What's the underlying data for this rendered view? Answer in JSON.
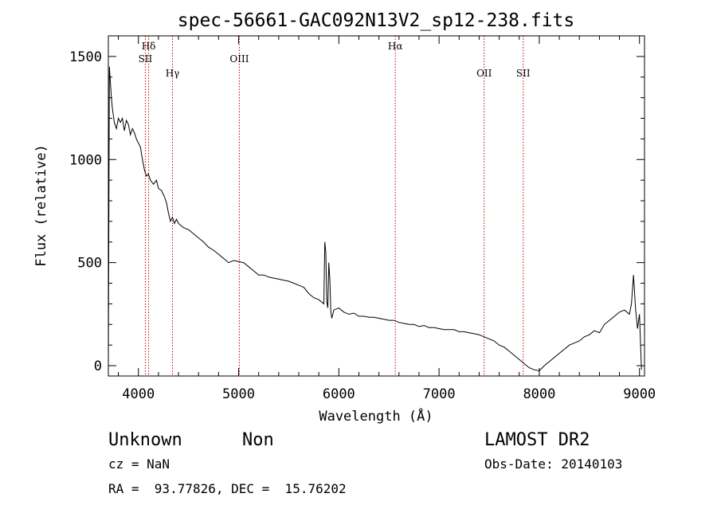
{
  "chart_data": {
    "type": "line",
    "title": "spec-56661-GAC092N13V2_sp12-238.fits",
    "xlabel": "Wavelength (Å)",
    "ylabel": "Flux (relative)",
    "xlim": [
      3700,
      9050
    ],
    "ylim": [
      -50,
      1600
    ],
    "xticks": [
      4000,
      5000,
      6000,
      7000,
      8000,
      9000
    ],
    "yticks": [
      0,
      500,
      1000,
      1500
    ],
    "line_color": "#000000",
    "marker_color": "#cc0000",
    "series": [
      {
        "x": [
          3700,
          3710,
          3720,
          3730,
          3740,
          3760,
          3780,
          3800,
          3820,
          3840,
          3860,
          3880,
          3900,
          3920,
          3940,
          3960,
          3980,
          4000,
          4020,
          4040,
          4060,
          4080,
          4100,
          4120,
          4150,
          4180,
          4200,
          4230,
          4260,
          4280,
          4300,
          4320,
          4340,
          4360,
          4380,
          4400,
          4450,
          4500,
          4550,
          4600,
          4650,
          4700,
          4750,
          4800,
          4850,
          4900,
          4950,
          5000,
          5050,
          5100,
          5150,
          5200,
          5250,
          5300,
          5350,
          5400,
          5450,
          5500,
          5550,
          5600,
          5650,
          5700,
          5750,
          5800,
          5850,
          5860,
          5870,
          5880,
          5890,
          5900,
          5910,
          5920,
          5930,
          5950,
          6000,
          6050,
          6100,
          6150,
          6200,
          6250,
          6300,
          6350,
          6400,
          6450,
          6500,
          6550,
          6600,
          6650,
          6700,
          6750,
          6800,
          6850,
          6900,
          6950,
          7000,
          7050,
          7100,
          7150,
          7200,
          7250,
          7300,
          7350,
          7400,
          7450,
          7500,
          7550,
          7600,
          7650,
          7700,
          7750,
          7800,
          7850,
          7900,
          7950,
          8000,
          8050,
          8100,
          8150,
          8200,
          8250,
          8300,
          8350,
          8400,
          8450,
          8500,
          8550,
          8600,
          8650,
          8700,
          8750,
          8800,
          8850,
          8900,
          8920,
          8940,
          8960,
          8980,
          9000,
          9020
        ],
        "y": [
          0,
          1450,
          1380,
          1300,
          1250,
          1180,
          1150,
          1200,
          1180,
          1200,
          1140,
          1190,
          1170,
          1120,
          1150,
          1130,
          1100,
          1080,
          1060,
          1000,
          950,
          920,
          930,
          900,
          880,
          900,
          860,
          850,
          820,
          790,
          740,
          700,
          720,
          690,
          710,
          690,
          670,
          660,
          640,
          620,
          600,
          575,
          560,
          540,
          520,
          500,
          510,
          505,
          500,
          480,
          460,
          440,
          440,
          430,
          425,
          420,
          415,
          410,
          400,
          390,
          380,
          350,
          330,
          320,
          300,
          600,
          550,
          310,
          280,
          500,
          420,
          260,
          230,
          270,
          280,
          260,
          250,
          255,
          240,
          240,
          235,
          235,
          230,
          225,
          220,
          220,
          210,
          205,
          200,
          200,
          190,
          195,
          185,
          185,
          180,
          175,
          175,
          175,
          165,
          165,
          160,
          155,
          150,
          140,
          130,
          120,
          100,
          90,
          70,
          50,
          30,
          10,
          -10,
          -20,
          -25,
          0,
          20,
          40,
          60,
          80,
          100,
          110,
          120,
          140,
          150,
          170,
          160,
          200,
          220,
          240,
          260,
          270,
          250,
          300,
          440,
          280,
          180,
          250,
          -20
        ]
      }
    ],
    "lines": [
      {
        "label": "Hδ",
        "x": 4102,
        "row": 1
      },
      {
        "label": "SII",
        "x": 4069,
        "row": 2
      },
      {
        "label": "Hγ",
        "x": 4340,
        "row": 3
      },
      {
        "label": "OIII",
        "x": 5007,
        "row": 2
      },
      {
        "label": "Hα",
        "x": 6563,
        "row": 1
      },
      {
        "label": "OII",
        "x": 7450,
        "row": 3
      },
      {
        "label": "SII",
        "x": 7840,
        "row": 3
      }
    ]
  },
  "footer": {
    "object_type": "Unknown",
    "subclass": "Non",
    "survey": "LAMOST DR2",
    "cz": "cz = NaN",
    "obs_date": "Obs-Date: 20140103",
    "coords": "RA =  93.77826, DEC =  15.76202"
  }
}
